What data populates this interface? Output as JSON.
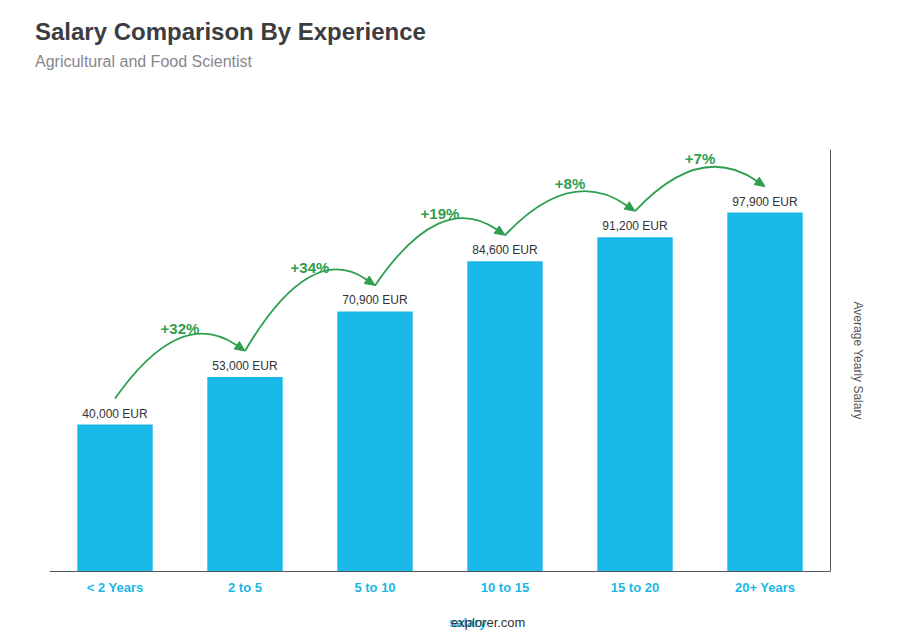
{
  "chart_data": {
    "type": "bar",
    "title": "Salary Comparison By Experience",
    "subtitle": "Agricultural and Food Scientist",
    "categories": [
      "< 2 Years",
      "2 to 5",
      "5 to 10",
      "10 to 15",
      "15 to 20",
      "20+ Years"
    ],
    "values": [
      40000,
      53000,
      70900,
      84600,
      91200,
      97900
    ],
    "value_labels": [
      "40,000 EUR",
      "53,000 EUR",
      "70,900 EUR",
      "84,600 EUR",
      "91,200 EUR",
      "97,900 EUR"
    ],
    "data_labels": true,
    "annotations": [
      "+32%",
      "+34%",
      "+19%",
      "+8%",
      "+7%"
    ],
    "color": "#1ab8e8",
    "ylabel": "Average Yearly Salary",
    "ylim": [
      0,
      115000
    ],
    "grid": false,
    "tick_labels": "x",
    "footer": [
      "salary",
      "explorer.com"
    ]
  }
}
